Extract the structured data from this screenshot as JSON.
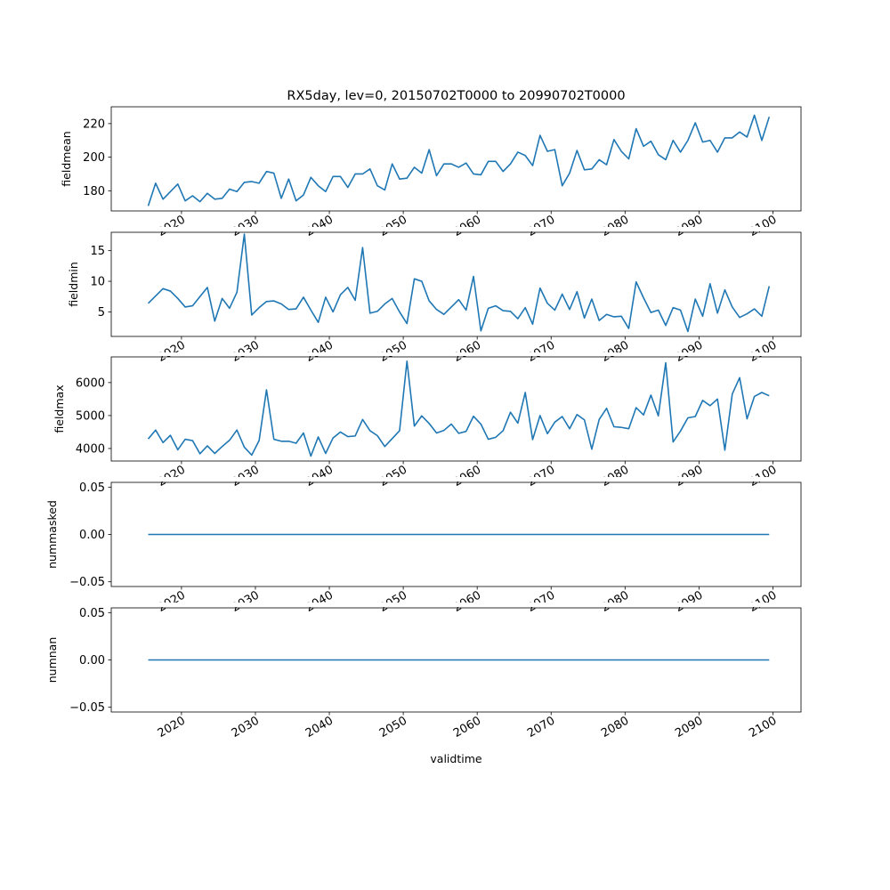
{
  "figure": {
    "title": "RX5day, lev=0, 20150702T0000 to 20990702T0000",
    "xlabel": "validtime"
  },
  "colors": {
    "line": "#1f77b4",
    "axes": "#000000",
    "background": "#ffffff"
  },
  "chart_data": [
    {
      "type": "line",
      "ylabel": "fieldmean",
      "ylim": [
        168,
        230
      ],
      "yticks": [
        {
          "v": 180,
          "label": "180"
        },
        {
          "v": 200,
          "label": "200"
        },
        {
          "v": 220,
          "label": "220"
        }
      ],
      "x_start_year": 2015,
      "values": [
        171,
        184.5,
        175,
        179.5,
        184,
        174,
        177,
        173.5,
        178.5,
        175,
        175.5,
        181,
        179.5,
        185,
        185.5,
        184.5,
        191.5,
        190.5,
        175.5,
        187,
        174,
        177.5,
        188,
        183,
        179.5,
        188.5,
        188.5,
        182,
        190,
        190,
        193,
        183,
        180.5,
        196,
        187,
        187.5,
        194,
        190.5,
        204.5,
        189,
        196,
        196,
        194,
        196.5,
        190,
        189.5,
        197.5,
        197.5,
        191.5,
        196,
        203,
        201,
        195,
        213,
        203.5,
        204.5,
        183,
        190.5,
        204,
        192.5,
        193,
        198.5,
        195.5,
        210.5,
        203.5,
        199,
        217,
        206.5,
        209.5,
        201.5,
        198.5,
        210,
        203,
        210,
        220.5,
        209,
        210,
        203,
        211.5,
        211.5,
        215,
        212,
        225,
        210,
        224
      ]
    },
    {
      "type": "line",
      "ylabel": "fieldmin",
      "ylim": [
        1,
        18
      ],
      "yticks": [
        {
          "v": 5,
          "label": "5"
        },
        {
          "v": 10,
          "label": "10"
        },
        {
          "v": 15,
          "label": "15"
        }
      ],
      "x_start_year": 2015,
      "values": [
        6.4,
        7.6,
        8.8,
        8.4,
        7.2,
        5.8,
        6,
        7.5,
        9,
        3.5,
        7.2,
        5.6,
        8.2,
        17.7,
        4.5,
        5.7,
        6.7,
        6.8,
        6.3,
        5.4,
        5.5,
        7.4,
        5.3,
        3.3,
        7.4,
        5,
        7.8,
        9,
        6.9,
        15.5,
        4.8,
        5.1,
        6.3,
        7.2,
        5,
        3.1,
        10.4,
        10,
        6.8,
        5.4,
        4.6,
        5.8,
        7,
        5.3,
        10.8,
        1.9,
        5.6,
        6,
        5.2,
        5.1,
        3.9,
        5.7,
        3,
        8.9,
        6.4,
        5.3,
        7.9,
        5.4,
        8.3,
        4,
        7.1,
        3.6,
        4.6,
        4.2,
        4.3,
        2.3,
        9.9,
        7.3,
        4.9,
        5.3,
        2.8,
        5.7,
        5.3,
        1.8,
        7.1,
        4.3,
        9.6,
        4.8,
        8.6,
        5.8,
        4.1,
        4.7,
        5.5,
        4.3,
        9.2
      ]
    },
    {
      "type": "line",
      "ylabel": "fieldmax",
      "ylim": [
        3620,
        6780
      ],
      "yticks": [
        {
          "v": 4000,
          "label": "4000"
        },
        {
          "v": 5000,
          "label": "5000"
        },
        {
          "v": 6000,
          "label": "6000"
        }
      ],
      "x_start_year": 2015,
      "values": [
        4290,
        4560,
        4180,
        4400,
        3960,
        4280,
        4240,
        3840,
        4080,
        3850,
        4060,
        4250,
        4560,
        4040,
        3800,
        4240,
        5780,
        4280,
        4220,
        4220,
        4160,
        4470,
        3770,
        4350,
        3850,
        4320,
        4500,
        4360,
        4380,
        4880,
        4540,
        4390,
        4060,
        4300,
        4540,
        6650,
        4680,
        4990,
        4760,
        4470,
        4550,
        4740,
        4460,
        4520,
        4980,
        4740,
        4280,
        4340,
        4540,
        5100,
        4770,
        5700,
        4270,
        5000,
        4450,
        4800,
        4970,
        4600,
        5030,
        4870,
        3980,
        4880,
        5220,
        4660,
        4640,
        4600,
        5240,
        5020,
        5620,
        4990,
        6600,
        4200,
        4530,
        4930,
        4970,
        5460,
        5300,
        5500,
        3950,
        5650,
        6150,
        4900,
        5580,
        5700,
        5600
      ]
    },
    {
      "type": "line",
      "ylabel": "nummasked",
      "ylim": [
        -0.055,
        0.055
      ],
      "yticks": [
        {
          "v": -0.05,
          "label": "−0.05"
        },
        {
          "v": 0,
          "label": "0.00"
        },
        {
          "v": 0.05,
          "label": "0.05"
        }
      ],
      "x_start_year": 2015,
      "values": [
        0,
        0,
        0,
        0,
        0,
        0,
        0,
        0,
        0,
        0,
        0,
        0,
        0,
        0,
        0,
        0,
        0,
        0,
        0,
        0,
        0,
        0,
        0,
        0,
        0,
        0,
        0,
        0,
        0,
        0,
        0,
        0,
        0,
        0,
        0,
        0,
        0,
        0,
        0,
        0,
        0,
        0,
        0,
        0,
        0,
        0,
        0,
        0,
        0,
        0,
        0,
        0,
        0,
        0,
        0,
        0,
        0,
        0,
        0,
        0,
        0,
        0,
        0,
        0,
        0,
        0,
        0,
        0,
        0,
        0,
        0,
        0,
        0,
        0,
        0,
        0,
        0,
        0,
        0,
        0,
        0,
        0,
        0,
        0,
        0
      ]
    },
    {
      "type": "line",
      "ylabel": "numnan",
      "ylim": [
        -0.055,
        0.055
      ],
      "yticks": [
        {
          "v": -0.05,
          "label": "−0.05"
        },
        {
          "v": 0,
          "label": "0.00"
        },
        {
          "v": 0.05,
          "label": "0.05"
        }
      ],
      "x_start_year": 2015,
      "values": [
        0,
        0,
        0,
        0,
        0,
        0,
        0,
        0,
        0,
        0,
        0,
        0,
        0,
        0,
        0,
        0,
        0,
        0,
        0,
        0,
        0,
        0,
        0,
        0,
        0,
        0,
        0,
        0,
        0,
        0,
        0,
        0,
        0,
        0,
        0,
        0,
        0,
        0,
        0,
        0,
        0,
        0,
        0,
        0,
        0,
        0,
        0,
        0,
        0,
        0,
        0,
        0,
        0,
        0,
        0,
        0,
        0,
        0,
        0,
        0,
        0,
        0,
        0,
        0,
        0,
        0,
        0,
        0,
        0,
        0,
        0,
        0,
        0,
        0,
        0,
        0,
        0,
        0,
        0,
        0,
        0,
        0,
        0,
        0,
        0
      ]
    }
  ],
  "x_axis": {
    "xlim": [
      2010.5,
      2103.8
    ],
    "ticks": [
      {
        "v": 2020,
        "label": "2020"
      },
      {
        "v": 2030,
        "label": "2030"
      },
      {
        "v": 2040,
        "label": "2040"
      },
      {
        "v": 2050,
        "label": "2050"
      },
      {
        "v": 2060,
        "label": "2060"
      },
      {
        "v": 2070,
        "label": "2070"
      },
      {
        "v": 2080,
        "label": "2080"
      },
      {
        "v": 2090,
        "label": "2090"
      },
      {
        "v": 2100,
        "label": "2100"
      }
    ]
  }
}
